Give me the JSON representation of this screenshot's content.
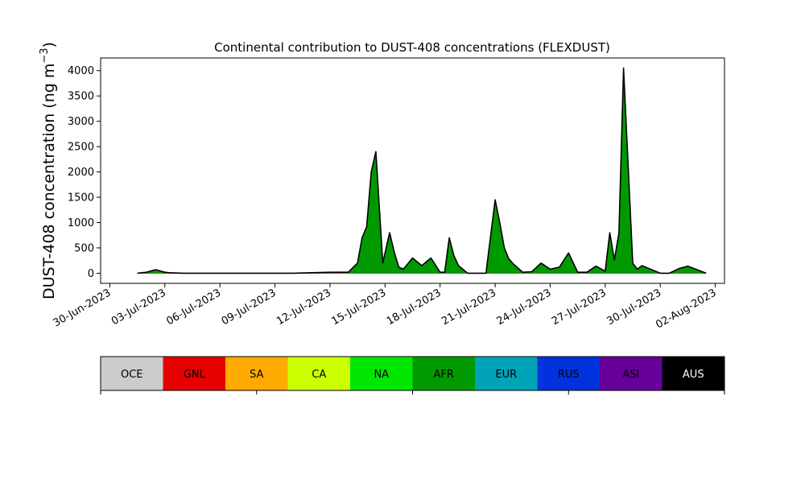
{
  "chart_data": {
    "type": "area",
    "title": "Continental contribution to DUST-408 concentrations (FLEXDUST)",
    "ylabel": "DUST-408 concentration (ng m",
    "ylabel_sup": "−3",
    "ylabel_close": ")",
    "ylim": [
      -200,
      4250
    ],
    "xlim": [
      "2023-06-29T12:00",
      "2023-08-02T12:00"
    ],
    "yticks": [
      0,
      500,
      1000,
      1500,
      2000,
      2500,
      3000,
      3500,
      4000
    ],
    "xticks": [
      {
        "date": "2023-06-30",
        "label": "30-Jun-2023"
      },
      {
        "date": "2023-07-03",
        "label": "03-Jul-2023"
      },
      {
        "date": "2023-07-06",
        "label": "06-Jul-2023"
      },
      {
        "date": "2023-07-09",
        "label": "09-Jul-2023"
      },
      {
        "date": "2023-07-12",
        "label": "12-Jul-2023"
      },
      {
        "date": "2023-07-15",
        "label": "15-Jul-2023"
      },
      {
        "date": "2023-07-18",
        "label": "18-Jul-2023"
      },
      {
        "date": "2023-07-21",
        "label": "21-Jul-2023"
      },
      {
        "date": "2023-07-24",
        "label": "24-Jul-2023"
      },
      {
        "date": "2023-07-27",
        "label": "27-Jul-2023"
      },
      {
        "date": "2023-07-30",
        "label": "30-Jul-2023"
      },
      {
        "date": "2023-08-02",
        "label": "02-Aug-2023"
      }
    ],
    "series": [
      {
        "name": "AFR",
        "color": "#009a00",
        "x": [
          "2023-07-01T12:00",
          "2023-07-02T00:00",
          "2023-07-02T12:00",
          "2023-07-03T00:00",
          "2023-07-03T06:00",
          "2023-07-04T00:00",
          "2023-07-10T00:00",
          "2023-07-11T00:00",
          "2023-07-12T00:00",
          "2023-07-13T00:00",
          "2023-07-13T12:00",
          "2023-07-13T18:00",
          "2023-07-14T00:00",
          "2023-07-14T06:00",
          "2023-07-14T12:00",
          "2023-07-14T21:00",
          "2023-07-15T06:00",
          "2023-07-15T12:00",
          "2023-07-15T18:00",
          "2023-07-16T00:00",
          "2023-07-16T12:00",
          "2023-07-17T00:00",
          "2023-07-17T12:00",
          "2023-07-18T00:00",
          "2023-07-18T06:00",
          "2023-07-18T12:00",
          "2023-07-18T18:00",
          "2023-07-19T00:00",
          "2023-07-19T12:00",
          "2023-07-20T00:00",
          "2023-07-20T12:00",
          "2023-07-21T00:00",
          "2023-07-21T06:00",
          "2023-07-21T12:00",
          "2023-07-21T18:00",
          "2023-07-22T00:00",
          "2023-07-22T12:00",
          "2023-07-23T00:00",
          "2023-07-23T12:00",
          "2023-07-24T00:00",
          "2023-07-24T12:00",
          "2023-07-25T00:00",
          "2023-07-25T12:00",
          "2023-07-26T00:00",
          "2023-07-26T12:00",
          "2023-07-27T00:00",
          "2023-07-27T06:00",
          "2023-07-27T12:00",
          "2023-07-27T18:00",
          "2023-07-28T00:00",
          "2023-07-28T12:00",
          "2023-07-28T18:00",
          "2023-07-29T00:00",
          "2023-07-30T00:00",
          "2023-07-30T12:00",
          "2023-07-31T00:00",
          "2023-07-31T12:00",
          "2023-08-01T12:00"
        ],
        "values": [
          0,
          20,
          70,
          20,
          10,
          0,
          0,
          10,
          20,
          20,
          200,
          700,
          920,
          2000,
          2400,
          200,
          800,
          420,
          120,
          80,
          300,
          150,
          300,
          20,
          20,
          700,
          350,
          150,
          0,
          0,
          0,
          1450,
          1000,
          500,
          280,
          180,
          20,
          30,
          200,
          80,
          120,
          400,
          20,
          20,
          140,
          40,
          800,
          260,
          800,
          4050,
          200,
          80,
          150,
          0,
          0,
          90,
          140,
          0
        ]
      }
    ],
    "legend": {
      "placement": "bottom",
      "entries": [
        {
          "label": "OCE",
          "color": "#cccccc",
          "text_color": "#000000"
        },
        {
          "label": "GNL",
          "color": "#e60000",
          "text_color": "#000000"
        },
        {
          "label": "SA",
          "color": "#ffaa00",
          "text_color": "#000000"
        },
        {
          "label": "CA",
          "color": "#ccff00",
          "text_color": "#000000"
        },
        {
          "label": "NA",
          "color": "#00e600",
          "text_color": "#000000"
        },
        {
          "label": "AFR",
          "color": "#009a00",
          "text_color": "#000000"
        },
        {
          "label": "EUR",
          "color": "#00a3b8",
          "text_color": "#000000"
        },
        {
          "label": "RUS",
          "color": "#0033dd",
          "text_color": "#000000"
        },
        {
          "label": "ASI",
          "color": "#660099",
          "text_color": "#000000"
        },
        {
          "label": "AUS",
          "color": "#000000",
          "text_color": "#ffffff"
        }
      ]
    },
    "grid": false
  }
}
